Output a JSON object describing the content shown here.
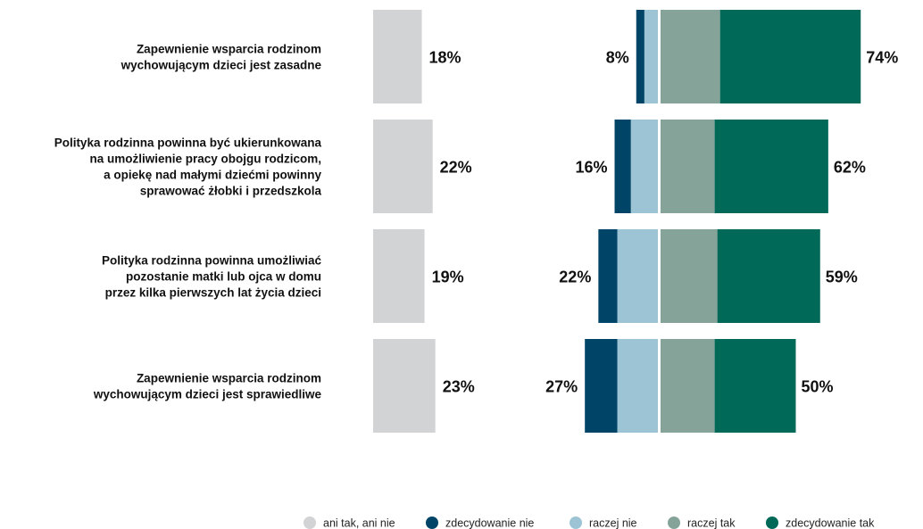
{
  "chart_data": {
    "type": "bar",
    "subtype": "diverging-stacked",
    "categories": [
      [
        "Zapewnienie wsparcia rodzinom",
        "wychowującym dzieci jest zasadne"
      ],
      [
        "Polityka rodzinna powinna być ukierunkowana",
        "na umożliwienie pracy obojgu rodzicom,",
        "a opiekę nad małymi dziećmi powinny",
        "sprawować żłobki i przedszkola"
      ],
      [
        "Polityka rodzinna powinna umożliwiać",
        "pozostanie matki lub ojca w domu",
        "przez kilka pierwszych lat życia dzieci"
      ],
      [
        "Zapewnienie wsparcia rodzinom",
        "wychowującym dzieci jest sprawiedliwe"
      ]
    ],
    "series": [
      {
        "name": "ani tak, ani nie",
        "color": "#d1d3d4",
        "values": [
          18,
          22,
          19,
          23
        ]
      },
      {
        "name": "zdecydowanie nie",
        "color": "#004467",
        "values": [
          3,
          6,
          7,
          12
        ]
      },
      {
        "name": "raczej nie",
        "color": "#9dc4d4",
        "values": [
          5,
          10,
          15,
          15
        ]
      },
      {
        "name": "raczej tak",
        "color": "#86a39a",
        "values": [
          22,
          20,
          21,
          20
        ]
      },
      {
        "name": "zdecydowanie tak",
        "color": "#006958",
        "values": [
          52,
          42,
          38,
          30
        ]
      }
    ],
    "neutral_labels": [
      "18%",
      "22%",
      "19%",
      "23%"
    ],
    "negative_labels": [
      "8%",
      "16%",
      "22%",
      "27%"
    ],
    "positive_labels": [
      "74%",
      "62%",
      "59%",
      "50%"
    ],
    "legend_position": "bottom-right"
  }
}
